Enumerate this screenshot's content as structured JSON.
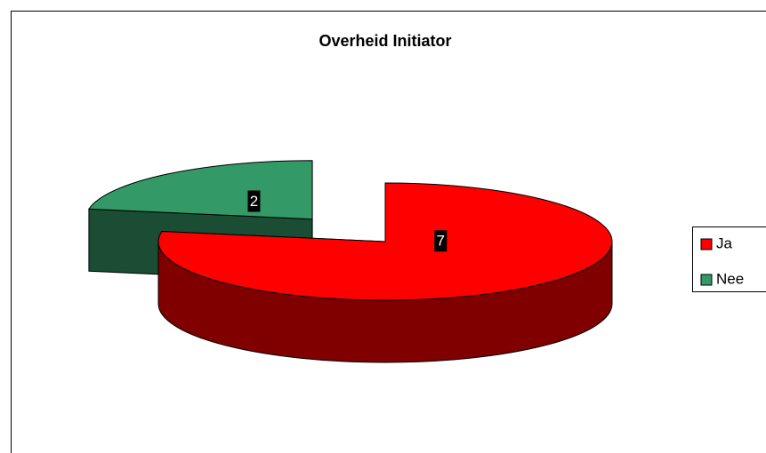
{
  "chart_data": {
    "type": "pie",
    "title": "Overheid Initiator",
    "categories": [
      "Ja",
      "Nee"
    ],
    "values": [
      7,
      2
    ],
    "colors": [
      "#ff0000",
      "#339966"
    ],
    "legend": "right"
  }
}
